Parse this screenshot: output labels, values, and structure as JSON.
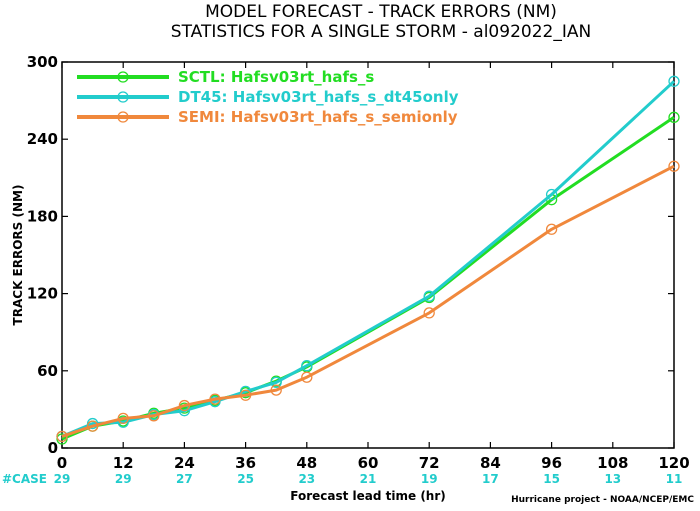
{
  "chart_data": {
    "type": "line",
    "title_lines": [
      "MODEL FORECAST - TRACK ERRORS (NM)",
      "STATISTICS FOR A SINGLE STORM - al092022_IAN"
    ],
    "xlabel": "Forecast lead time (hr)",
    "ylabel": "TRACK ERRORS (NM)",
    "x_ticks": [
      0,
      12,
      24,
      36,
      48,
      60,
      72,
      84,
      96,
      108,
      120
    ],
    "y_ticks": [
      "0",
      "60",
      "120",
      "180",
      "240",
      "300"
    ],
    "xlim": [
      0,
      120
    ],
    "ylim": [
      0,
      300
    ],
    "grid": false,
    "legend_position": "top-left",
    "x": [
      0,
      6,
      12,
      18,
      24,
      30,
      36,
      42,
      48,
      72,
      96,
      120
    ],
    "series": [
      {
        "name": "SCTL: Hafsv03rt_hafs_s",
        "color": "#22dd22",
        "values": [
          7,
          17,
          21,
          27,
          31,
          37,
          43,
          52,
          63,
          117,
          193,
          257
        ]
      },
      {
        "name": "DT45: Hafsv03rt_hafs_s_dt45only",
        "color": "#22cccc",
        "values": [
          9,
          19,
          20,
          26,
          29,
          36,
          44,
          51,
          64,
          118,
          197,
          285
        ]
      },
      {
        "name": "SEMI: Hafsv03rt_hafs_s_semionly",
        "color": "#f0883c",
        "values": [
          9,
          17,
          23,
          25,
          33,
          38,
          41,
          45,
          55,
          105,
          170,
          219
        ]
      }
    ],
    "case_label": "#CASE",
    "case_label_color": "#22cccc",
    "case_counts": [
      "29",
      "29",
      "27",
      "25",
      "23",
      "21",
      "19",
      "17",
      "15",
      "13",
      "11"
    ],
    "credit": "Hurricane project - NOAA/NCEP/EMC"
  }
}
